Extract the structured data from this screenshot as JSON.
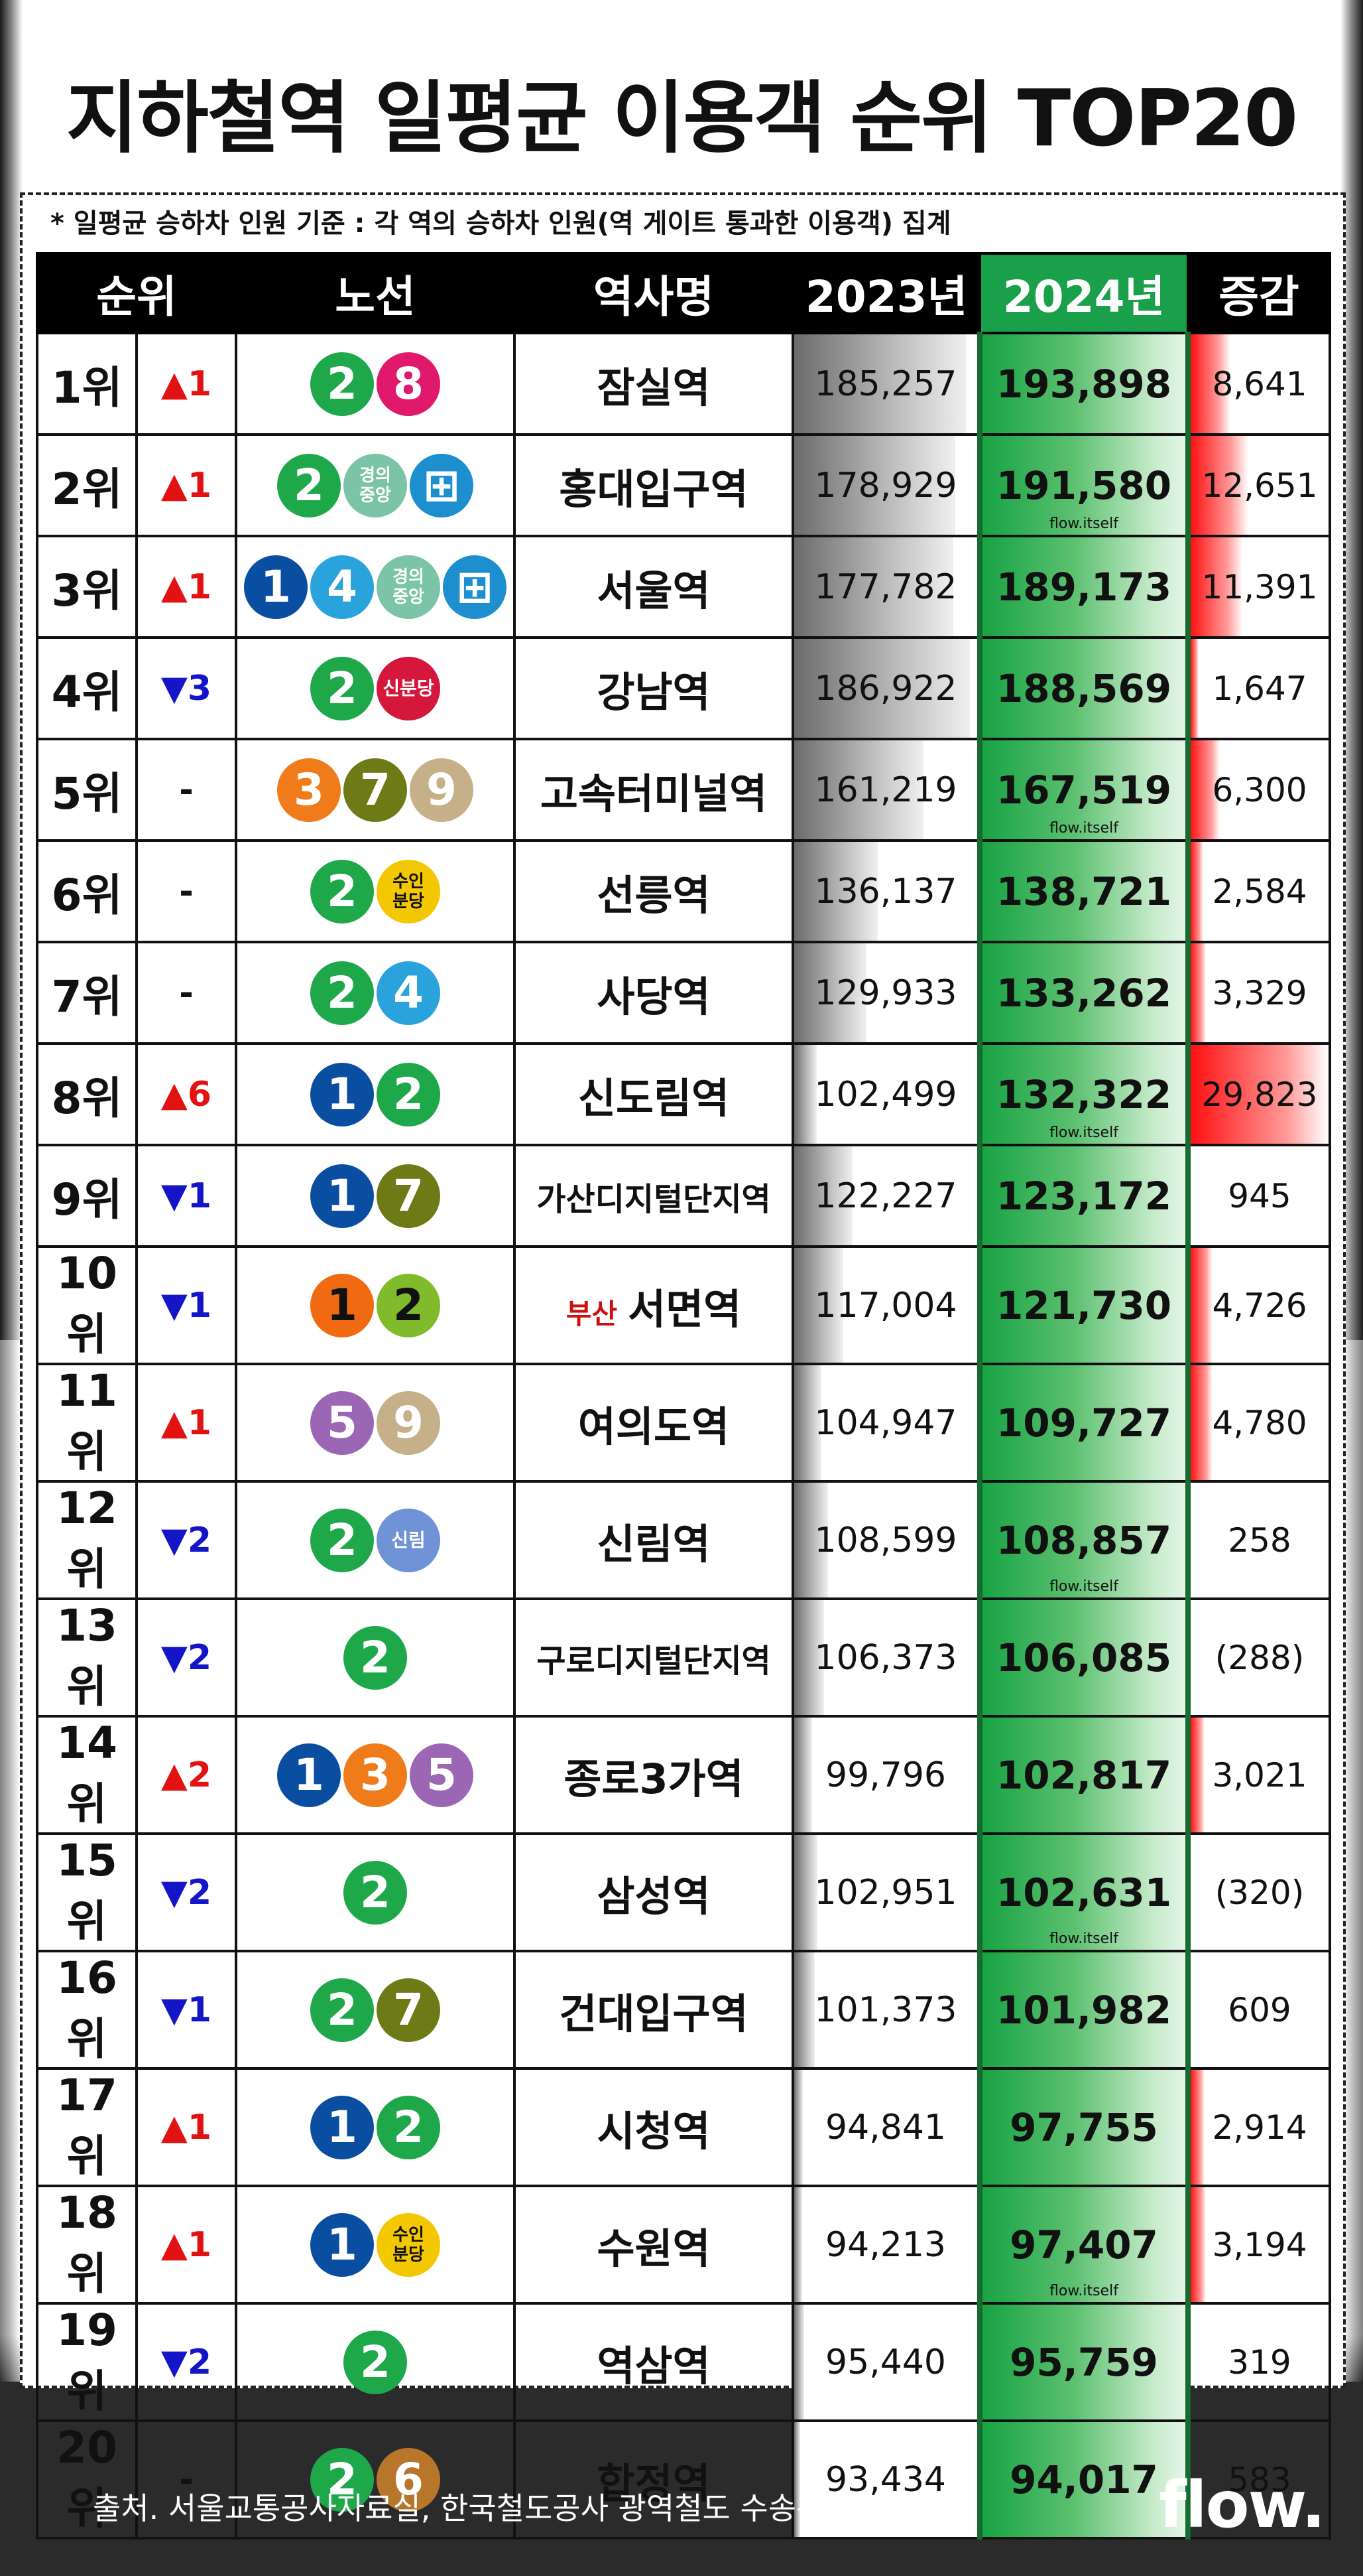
{
  "title": "지하철역 일평균 이용객 순위 TOP20",
  "note": "* 일평균 승하차 인원 기준 : 각 역의 승하차 인원(역 게이트 통과한 이용객) 집계",
  "headers": {
    "rank": "순위",
    "lines": "노선",
    "station": "역사명",
    "y2023": "2023년",
    "y2024": "2024년",
    "diff": "증감"
  },
  "colors": {
    "line1": "#0a4ea1",
    "line2": "#1ea84a",
    "line3": "#ef7b1a",
    "line4": "#2aa3dc",
    "line5": "#9b67b5",
    "line6": "#b8762b",
    "line7": "#6d7a16",
    "line8": "#e0196c",
    "line9": "#c5b08a",
    "gyeongui": "#7cc4a7",
    "sinbundang": "#d4173a",
    "suinbundang": "#f4c800",
    "sillim": "#6f93d6",
    "airport": "#1d8fcf",
    "busan1": "#f06a12",
    "busan2": "#7fbb2b",
    "up": "#e31212",
    "down": "#1515c8"
  },
  "rows": [
    {
      "rank": "1위",
      "change": "▲1",
      "dir": "up",
      "lines": [
        {
          "label": "2",
          "color": "line2"
        },
        {
          "label": "8",
          "color": "line8"
        }
      ],
      "station": "잠실역",
      "y2023": "185,257",
      "y2024": "193,898",
      "diff": "8,641",
      "diff_ratio": 0.29
    },
    {
      "rank": "2위",
      "change": "▲1",
      "dir": "up",
      "lines": [
        {
          "label": "2",
          "color": "line2"
        },
        {
          "label": "경의\n중앙",
          "color": "gyeongui",
          "kind": "txt"
        },
        {
          "label": "⊞",
          "color": "airport"
        }
      ],
      "station": "홍대입구역",
      "y2023": "178,929",
      "y2024": "191,580",
      "diff": "12,651",
      "diff_ratio": 0.42,
      "watermark": "flow.itself"
    },
    {
      "rank": "3위",
      "change": "▲1",
      "dir": "up",
      "lines": [
        {
          "label": "1",
          "color": "line1"
        },
        {
          "label": "4",
          "color": "line4"
        },
        {
          "label": "경의\n중앙",
          "color": "gyeongui",
          "kind": "txt"
        },
        {
          "label": "⊞",
          "color": "airport"
        }
      ],
      "station": "서울역",
      "y2023": "177,782",
      "y2024": "189,173",
      "diff": "11,391",
      "diff_ratio": 0.38
    },
    {
      "rank": "4위",
      "change": "▼3",
      "dir": "down",
      "lines": [
        {
          "label": "2",
          "color": "line2"
        },
        {
          "label": "신분당",
          "color": "sinbundang",
          "kind": "txt1"
        }
      ],
      "station": "강남역",
      "y2023": "186,922",
      "y2024": "188,569",
      "diff": "1,647",
      "diff_ratio": 0.06
    },
    {
      "rank": "5위",
      "change": "-",
      "dir": "same",
      "lines": [
        {
          "label": "3",
          "color": "line3"
        },
        {
          "label": "7",
          "color": "line7"
        },
        {
          "label": "9",
          "color": "line9"
        }
      ],
      "station": "고속터미널역",
      "y2023": "161,219",
      "y2024": "167,519",
      "diff": "6,300",
      "diff_ratio": 0.21,
      "watermark": "flow.itself"
    },
    {
      "rank": "6위",
      "change": "-",
      "dir": "same",
      "lines": [
        {
          "label": "2",
          "color": "line2"
        },
        {
          "label": "수인\n분당",
          "color": "suinbundang",
          "kind": "txt",
          "dark": true
        }
      ],
      "station": "선릉역",
      "y2023": "136,137",
      "y2024": "138,721",
      "diff": "2,584",
      "diff_ratio": 0.09
    },
    {
      "rank": "7위",
      "change": "-",
      "dir": "same",
      "lines": [
        {
          "label": "2",
          "color": "line2"
        },
        {
          "label": "4",
          "color": "line4"
        }
      ],
      "station": "사당역",
      "y2023": "129,933",
      "y2024": "133,262",
      "diff": "3,329",
      "diff_ratio": 0.11
    },
    {
      "rank": "8위",
      "change": "▲6",
      "dir": "up",
      "lines": [
        {
          "label": "1",
          "color": "line1"
        },
        {
          "label": "2",
          "color": "line2"
        }
      ],
      "station": "신도림역",
      "y2023": "102,499",
      "y2024": "132,322",
      "diff": "29,823",
      "diff_ratio": 1.0,
      "watermark": "flow.itself"
    },
    {
      "rank": "9위",
      "change": "▼1",
      "dir": "down",
      "lines": [
        {
          "label": "1",
          "color": "line1"
        },
        {
          "label": "7",
          "color": "line7"
        }
      ],
      "station": "가산디지털단지역",
      "small": true,
      "y2023": "122,227",
      "y2024": "123,172",
      "diff": "945",
      "diff_ratio": 0
    },
    {
      "rank": "10위",
      "change": "▼1",
      "dir": "down",
      "lines": [
        {
          "label": "1",
          "color": "busan1",
          "dark": true
        },
        {
          "label": "2",
          "color": "busan2",
          "dark": true
        }
      ],
      "prefix": "부산",
      "station": "서면역",
      "y2023": "117,004",
      "y2024": "121,730",
      "diff": "4,726",
      "diff_ratio": 0.16
    },
    {
      "rank": "11위",
      "change": "▲1",
      "dir": "up",
      "lines": [
        {
          "label": "5",
          "color": "line5"
        },
        {
          "label": "9",
          "color": "line9"
        }
      ],
      "station": "여의도역",
      "y2023": "104,947",
      "y2024": "109,727",
      "diff": "4,780",
      "diff_ratio": 0.16
    },
    {
      "rank": "12위",
      "change": "▼2",
      "dir": "down",
      "lines": [
        {
          "label": "2",
          "color": "line2"
        },
        {
          "label": "신림",
          "color": "sillim",
          "kind": "txt1"
        }
      ],
      "station": "신림역",
      "y2023": "108,599",
      "y2024": "108,857",
      "diff": "258",
      "diff_ratio": 0,
      "watermark": "flow.itself"
    },
    {
      "rank": "13위",
      "change": "▼2",
      "dir": "down",
      "lines": [
        {
          "label": "2",
          "color": "line2"
        }
      ],
      "station": "구로디지털단지역",
      "small": true,
      "y2023": "106,373",
      "y2024": "106,085",
      "diff": "(288)",
      "diff_ratio": 0
    },
    {
      "rank": "14위",
      "change": "▲2",
      "dir": "up",
      "lines": [
        {
          "label": "1",
          "color": "line1"
        },
        {
          "label": "3",
          "color": "line3"
        },
        {
          "label": "5",
          "color": "line5"
        }
      ],
      "station": "종로3가역",
      "y2023": "99,796",
      "y2024": "102,817",
      "diff": "3,021",
      "diff_ratio": 0.1
    },
    {
      "rank": "15위",
      "change": "▼2",
      "dir": "down",
      "lines": [
        {
          "label": "2",
          "color": "line2"
        }
      ],
      "station": "삼성역",
      "y2023": "102,951",
      "y2024": "102,631",
      "diff": "(320)",
      "diff_ratio": 0,
      "watermark": "flow.itself"
    },
    {
      "rank": "16위",
      "change": "▼1",
      "dir": "down",
      "lines": [
        {
          "label": "2",
          "color": "line2"
        },
        {
          "label": "7",
          "color": "line7"
        }
      ],
      "station": "건대입구역",
      "y2023": "101,373",
      "y2024": "101,982",
      "diff": "609",
      "diff_ratio": 0
    },
    {
      "rank": "17위",
      "change": "▲1",
      "dir": "up",
      "lines": [
        {
          "label": "1",
          "color": "line1"
        },
        {
          "label": "2",
          "color": "line2"
        }
      ],
      "station": "시청역",
      "y2023": "94,841",
      "y2024": "97,755",
      "diff": "2,914",
      "diff_ratio": 0.1
    },
    {
      "rank": "18위",
      "change": "▲1",
      "dir": "up",
      "lines": [
        {
          "label": "1",
          "color": "line1"
        },
        {
          "label": "수인\n분당",
          "color": "suinbundang",
          "kind": "txt",
          "dark": true
        }
      ],
      "station": "수원역",
      "y2023": "94,213",
      "y2024": "97,407",
      "diff": "3,194",
      "diff_ratio": 0.11,
      "watermark": "flow.itself"
    },
    {
      "rank": "19위",
      "change": "▼2",
      "dir": "down",
      "lines": [
        {
          "label": "2",
          "color": "line2"
        }
      ],
      "station": "역삼역",
      "y2023": "95,440",
      "y2024": "95,759",
      "diff": "319",
      "diff_ratio": 0
    },
    {
      "rank": "20위",
      "change": "-",
      "dir": "same",
      "lines": [
        {
          "label": "2",
          "color": "line2"
        },
        {
          "label": "6",
          "color": "line6"
        }
      ],
      "station": "합정역",
      "y2023": "93,434",
      "y2024": "94,017",
      "diff": "583",
      "diff_ratio": 0
    }
  ],
  "source": "출처. 서울교통공사자료실, 한국철도공사 광역철도 수송통계 자료실",
  "logo": "flow."
}
